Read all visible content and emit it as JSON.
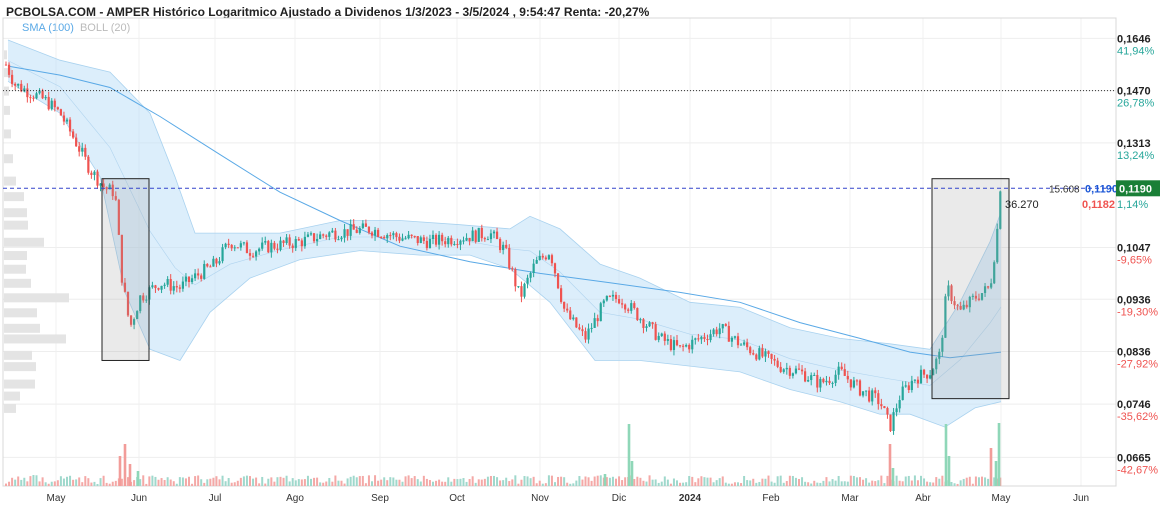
{
  "title": "PCBOLSA.COM - AMPER Histórico Logaritmico Ajustado a Dividenos 1/3/2023 - 3/5/2024 , 9:54:47 Renta: -20,27%",
  "legend": {
    "sma": "SMA (100)",
    "boll": "BOLL (20)"
  },
  "colors": {
    "up": "#26a69a",
    "down": "#ef5350",
    "sma": "#5aa9e6",
    "boll": "#bfe0f7",
    "current": "#1a7f37",
    "ref": "#3344cc",
    "boll_text": "#bbbbbb"
  },
  "annotations": {
    "volume_label": "36.270",
    "ref_line_label": "15.608",
    "ref_price": "0,1190",
    "current_price": "0,1190",
    "last_price": "0,1182",
    "last_pct": "1,14%"
  },
  "chart_data": {
    "type": "candlestick",
    "y_scale": "log",
    "ylim": [
      0.0625,
      0.172
    ],
    "y_ticks": [
      {
        "value": 0.1646,
        "label": "0,1646",
        "pct": "41,94%"
      },
      {
        "value": 0.147,
        "label": "0,1470",
        "pct": "26,78%"
      },
      {
        "value": 0.1313,
        "label": "0,1313",
        "pct": "13,24%"
      },
      {
        "value": 0.1047,
        "label": "0,1047",
        "pct": "-9,65%"
      },
      {
        "value": 0.0936,
        "label": "0,0936",
        "pct": "-19,30%"
      },
      {
        "value": 0.0836,
        "label": "0,0836",
        "pct": "-27,92%"
      },
      {
        "value": 0.0746,
        "label": "0,0746",
        "pct": "-35,62%"
      },
      {
        "value": 0.0665,
        "label": "0,0665",
        "pct": "-42,67%"
      }
    ],
    "x_labels": [
      "May",
      "Jun",
      "Jul",
      "Ago",
      "Sep",
      "Oct",
      "Nov",
      "Dic",
      "2024",
      "Feb",
      "Mar",
      "Abr",
      "May",
      "Jun"
    ],
    "x_label_bold": "2024",
    "price_path": [
      {
        "x": 0,
        "v": 0.16
      },
      {
        "x": 15,
        "v": 0.149
      },
      {
        "x": 45,
        "v": 0.144
      },
      {
        "x": 60,
        "v": 0.14
      },
      {
        "x": 75,
        "v": 0.132
      },
      {
        "x": 90,
        "v": 0.124
      },
      {
        "x": 105,
        "v": 0.119
      },
      {
        "x": 115,
        "v": 0.118
      },
      {
        "x": 122,
        "v": 0.098
      },
      {
        "x": 130,
        "v": 0.088
      },
      {
        "x": 140,
        "v": 0.094
      },
      {
        "x": 160,
        "v": 0.097
      },
      {
        "x": 180,
        "v": 0.096
      },
      {
        "x": 200,
        "v": 0.099
      },
      {
        "x": 215,
        "v": 0.101
      },
      {
        "x": 230,
        "v": 0.106
      },
      {
        "x": 250,
        "v": 0.104
      },
      {
        "x": 270,
        "v": 0.105
      },
      {
        "x": 300,
        "v": 0.106
      },
      {
        "x": 330,
        "v": 0.108
      },
      {
        "x": 370,
        "v": 0.109
      },
      {
        "x": 400,
        "v": 0.107
      },
      {
        "x": 430,
        "v": 0.106
      },
      {
        "x": 460,
        "v": 0.107
      },
      {
        "x": 490,
        "v": 0.108
      },
      {
        "x": 505,
        "v": 0.104
      },
      {
        "x": 520,
        "v": 0.094
      },
      {
        "x": 535,
        "v": 0.101
      },
      {
        "x": 550,
        "v": 0.104
      },
      {
        "x": 565,
        "v": 0.091
      },
      {
        "x": 585,
        "v": 0.086
      },
      {
        "x": 605,
        "v": 0.093
      },
      {
        "x": 620,
        "v": 0.094
      },
      {
        "x": 640,
        "v": 0.09
      },
      {
        "x": 660,
        "v": 0.086
      },
      {
        "x": 680,
        "v": 0.084
      },
      {
        "x": 700,
        "v": 0.086
      },
      {
        "x": 720,
        "v": 0.088
      },
      {
        "x": 740,
        "v": 0.085
      },
      {
        "x": 760,
        "v": 0.083
      },
      {
        "x": 780,
        "v": 0.081
      },
      {
        "x": 800,
        "v": 0.08
      },
      {
        "x": 820,
        "v": 0.078
      },
      {
        "x": 840,
        "v": 0.08
      },
      {
        "x": 860,
        "v": 0.077
      },
      {
        "x": 880,
        "v": 0.075
      },
      {
        "x": 890,
        "v": 0.071
      },
      {
        "x": 900,
        "v": 0.076
      },
      {
        "x": 915,
        "v": 0.079
      },
      {
        "x": 930,
        "v": 0.08
      },
      {
        "x": 940,
        "v": 0.083
      },
      {
        "x": 947,
        "v": 0.096
      },
      {
        "x": 960,
        "v": 0.091
      },
      {
        "x": 975,
        "v": 0.094
      },
      {
        "x": 990,
        "v": 0.096
      },
      {
        "x": 996,
        "v": 0.106
      },
      {
        "x": 1001,
        "v": 0.1182
      }
    ],
    "sma_path": [
      {
        "x": 8,
        "v": 0.155
      },
      {
        "x": 60,
        "v": 0.152
      },
      {
        "x": 110,
        "v": 0.148
      },
      {
        "x": 160,
        "v": 0.139
      },
      {
        "x": 220,
        "v": 0.128
      },
      {
        "x": 280,
        "v": 0.118
      },
      {
        "x": 340,
        "v": 0.111
      },
      {
        "x": 400,
        "v": 0.105
      },
      {
        "x": 470,
        "v": 0.1015
      },
      {
        "x": 540,
        "v": 0.099
      },
      {
        "x": 610,
        "v": 0.097
      },
      {
        "x": 680,
        "v": 0.095
      },
      {
        "x": 740,
        "v": 0.093
      },
      {
        "x": 800,
        "v": 0.089
      },
      {
        "x": 860,
        "v": 0.086
      },
      {
        "x": 910,
        "v": 0.0835
      },
      {
        "x": 950,
        "v": 0.0825
      },
      {
        "x": 1001,
        "v": 0.0835
      }
    ],
    "boll_upper": [
      {
        "x": 8,
        "v": 0.164
      },
      {
        "x": 60,
        "v": 0.157
      },
      {
        "x": 110,
        "v": 0.153
      },
      {
        "x": 150,
        "v": 0.14
      },
      {
        "x": 175,
        "v": 0.122
      },
      {
        "x": 195,
        "v": 0.108
      },
      {
        "x": 230,
        "v": 0.108
      },
      {
        "x": 280,
        "v": 0.108
      },
      {
        "x": 340,
        "v": 0.111
      },
      {
        "x": 400,
        "v": 0.111
      },
      {
        "x": 460,
        "v": 0.11
      },
      {
        "x": 510,
        "v": 0.109
      },
      {
        "x": 530,
        "v": 0.112
      },
      {
        "x": 560,
        "v": 0.109
      },
      {
        "x": 600,
        "v": 0.101
      },
      {
        "x": 640,
        "v": 0.098
      },
      {
        "x": 690,
        "v": 0.093
      },
      {
        "x": 740,
        "v": 0.092
      },
      {
        "x": 790,
        "v": 0.088
      },
      {
        "x": 840,
        "v": 0.086
      },
      {
        "x": 890,
        "v": 0.085
      },
      {
        "x": 930,
        "v": 0.084
      },
      {
        "x": 960,
        "v": 0.093
      },
      {
        "x": 990,
        "v": 0.106
      },
      {
        "x": 1001,
        "v": 0.113
      }
    ],
    "boll_lower": [
      {
        "x": 8,
        "v": 0.15
      },
      {
        "x": 60,
        "v": 0.14
      },
      {
        "x": 100,
        "v": 0.122
      },
      {
        "x": 125,
        "v": 0.095
      },
      {
        "x": 150,
        "v": 0.084
      },
      {
        "x": 180,
        "v": 0.082
      },
      {
        "x": 210,
        "v": 0.091
      },
      {
        "x": 250,
        "v": 0.098
      },
      {
        "x": 300,
        "v": 0.102
      },
      {
        "x": 360,
        "v": 0.104
      },
      {
        "x": 420,
        "v": 0.103
      },
      {
        "x": 470,
        "v": 0.103
      },
      {
        "x": 510,
        "v": 0.1
      },
      {
        "x": 550,
        "v": 0.093
      },
      {
        "x": 595,
        "v": 0.082
      },
      {
        "x": 640,
        "v": 0.082
      },
      {
        "x": 690,
        "v": 0.081
      },
      {
        "x": 740,
        "v": 0.08
      },
      {
        "x": 790,
        "v": 0.077
      },
      {
        "x": 840,
        "v": 0.075
      },
      {
        "x": 880,
        "v": 0.073
      },
      {
        "x": 910,
        "v": 0.073
      },
      {
        "x": 945,
        "v": 0.071
      },
      {
        "x": 975,
        "v": 0.074
      },
      {
        "x": 1001,
        "v": 0.075
      }
    ],
    "boxes": [
      {
        "from_x": 102,
        "to_x": 149,
        "high": 0.1215,
        "low": 0.082
      },
      {
        "from_x": 932,
        "to_x": 1009,
        "high": 0.1215,
        "low": 0.0755
      }
    ],
    "dotted_line": 0.147,
    "ref_line": 0.119,
    "volume_profile": [
      {
        "v": 0.159,
        "w": 3
      },
      {
        "v": 0.153,
        "w": 8
      },
      {
        "v": 0.147,
        "w": 5
      },
      {
        "v": 0.141,
        "w": 6
      },
      {
        "v": 0.134,
        "w": 7
      },
      {
        "v": 0.127,
        "w": 9
      },
      {
        "v": 0.121,
        "w": 12
      },
      {
        "v": 0.117,
        "w": 20
      },
      {
        "v": 0.113,
        "w": 23
      },
      {
        "v": 0.11,
        "w": 24
      },
      {
        "v": 0.106,
        "w": 40
      },
      {
        "v": 0.103,
        "w": 23
      },
      {
        "v": 0.1,
        "w": 22
      },
      {
        "v": 0.097,
        "w": 27
      },
      {
        "v": 0.094,
        "w": 65
      },
      {
        "v": 0.091,
        "w": 33
      },
      {
        "v": 0.088,
        "w": 36
      },
      {
        "v": 0.086,
        "w": 62
      },
      {
        "v": 0.083,
        "w": 28
      },
      {
        "v": 0.081,
        "w": 32
      },
      {
        "v": 0.078,
        "w": 31
      },
      {
        "v": 0.076,
        "w": 16
      },
      {
        "v": 0.074,
        "w": 12
      }
    ],
    "volume_spikes": [
      {
        "x": 120,
        "h": 30,
        "up": false
      },
      {
        "x": 125,
        "h": 42,
        "up": false
      },
      {
        "x": 130,
        "h": 22,
        "up": false
      },
      {
        "x": 138,
        "h": 15,
        "up": true
      },
      {
        "x": 605,
        "h": 12,
        "up": true
      },
      {
        "x": 629,
        "h": 62,
        "up": true
      },
      {
        "x": 632,
        "h": 25,
        "up": true
      },
      {
        "x": 890,
        "h": 42,
        "up": false
      },
      {
        "x": 893,
        "h": 18,
        "up": true
      },
      {
        "x": 946,
        "h": 62,
        "up": true
      },
      {
        "x": 949,
        "h": 30,
        "up": true
      },
      {
        "x": 991,
        "h": 38,
        "up": false
      },
      {
        "x": 996,
        "h": 25,
        "up": true
      },
      {
        "x": 999,
        "h": 63,
        "up": true
      }
    ]
  }
}
